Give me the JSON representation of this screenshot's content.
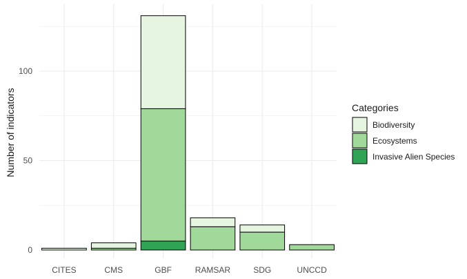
{
  "chart_data": {
    "type": "bar",
    "stacked": true,
    "categories": [
      "CITES",
      "CMS",
      "GBF",
      "RAMSAR",
      "SDG",
      "UNCCD"
    ],
    "series": [
      {
        "name": "Invasive Alien Species",
        "values": [
          0,
          0,
          5,
          0,
          0,
          0
        ],
        "color": "#31a354"
      },
      {
        "name": "Ecosystems",
        "values": [
          0,
          1,
          74,
          13,
          10,
          3
        ],
        "color": "#a1d99b"
      },
      {
        "name": "Biodiversity",
        "values": [
          1,
          3,
          52,
          5,
          4,
          0
        ],
        "color": "#e5f5e0"
      }
    ],
    "ylabel": "Number of indicators",
    "xlabel": "",
    "ylim": [
      0,
      131
    ],
    "yticks": [
      0,
      50,
      100
    ],
    "grid": true,
    "legend": {
      "title": "Categories",
      "placement": "right",
      "order": [
        "Biodiversity",
        "Ecosystems",
        "Invasive Alien Species"
      ]
    },
    "colors": {
      "grid": "#ebebeb",
      "bar_outline": "#000000",
      "tick_text": "#4d4d4d"
    }
  }
}
